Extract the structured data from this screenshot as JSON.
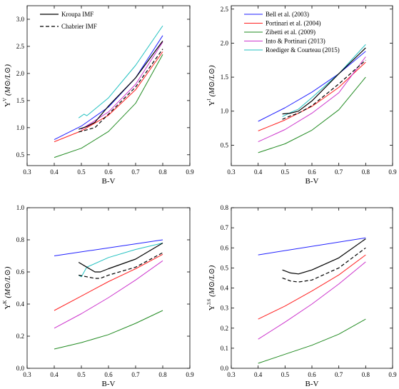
{
  "chart_data": [
    {
      "type": "line",
      "title": "",
      "xlabel": "B-V",
      "ylabel": "Υ^V (M⊙/L⊙)",
      "ylabel_parts": {
        "sym": "Υ",
        "sup": "V",
        "unit": "(M⊙/L⊙)"
      },
      "xlim": [
        0.3,
        0.9
      ],
      "ylim": [
        0.3,
        3.25
      ],
      "xticks": [
        "0.3",
        "0.4",
        "0.5",
        "0.6",
        "0.7",
        "0.8",
        "0.9"
      ],
      "yticks": [
        "0.5",
        "1.0",
        "1.5",
        "2.0",
        "2.5",
        "3.0"
      ],
      "legend": {
        "position": "top-left",
        "entries": [
          {
            "label": "Kroupa IMF",
            "style": "solid"
          },
          {
            "label": "Chabrier IMF",
            "style": "dashed"
          }
        ]
      },
      "series": [
        {
          "color": "#1f1fff",
          "style": "solid",
          "x": [
            0.4,
            0.5,
            0.6,
            0.7,
            0.8
          ],
          "y": [
            0.78,
            1.03,
            1.38,
            1.92,
            2.7
          ]
        },
        {
          "color": "#ff2020",
          "style": "solid",
          "x": [
            0.4,
            0.5,
            0.6,
            0.7,
            0.8
          ],
          "y": [
            0.74,
            0.94,
            1.23,
            1.7,
            2.4
          ]
        },
        {
          "color": "#228b22",
          "style": "solid",
          "x": [
            0.4,
            0.5,
            0.6,
            0.7,
            0.8
          ],
          "y": [
            0.45,
            0.62,
            0.93,
            1.45,
            2.35
          ]
        },
        {
          "color": "#cc33cc",
          "style": "solid",
          "x": [
            0.5,
            0.6,
            0.7,
            0.8
          ],
          "y": [
            0.97,
            1.29,
            1.8,
            2.58
          ]
        },
        {
          "color": "#20c0c0",
          "style": "solid",
          "x": [
            0.49,
            0.51,
            0.52,
            0.53,
            0.6,
            0.7,
            0.8
          ],
          "y": [
            1.18,
            1.25,
            1.22,
            1.26,
            1.55,
            2.15,
            2.88
          ]
        },
        {
          "color": "#000000",
          "style": "solid",
          "x": [
            0.49,
            0.52,
            0.55,
            0.6,
            0.7,
            0.8
          ],
          "y": [
            0.97,
            1.02,
            1.1,
            1.4,
            1.92,
            2.6
          ]
        },
        {
          "color": "#000000",
          "style": "dashed",
          "x": [
            0.49,
            0.52,
            0.55,
            0.6,
            0.7,
            0.8
          ],
          "y": [
            0.92,
            0.96,
            1.0,
            1.25,
            1.75,
            2.45
          ]
        }
      ]
    },
    {
      "type": "line",
      "title": "",
      "xlabel": "B-V",
      "ylabel": "Υ*^I (M⊙/L⊙)",
      "ylabel_parts": {
        "sym": "Υ",
        "sup": "I",
        "unit": "(M⊙/L⊙)"
      },
      "xlim": [
        0.3,
        0.9
      ],
      "ylim": [
        0.2,
        2.55
      ],
      "xticks": [
        "0.3",
        "0.4",
        "0.5",
        "0.6",
        "0.7",
        "0.8",
        "0.9"
      ],
      "yticks": [
        "0.5",
        "1.0",
        "1.5",
        "2.0",
        "2.5"
      ],
      "legend": {
        "position": "top-left",
        "entries": [
          {
            "label": "Bell et al. (2003)",
            "color": "#1f1fff"
          },
          {
            "label": "Portinari et al. (2004)",
            "color": "#ff2020"
          },
          {
            "label": "Zibetti et al. (2009)",
            "color": "#228b22"
          },
          {
            "label": "Into & Portinari (2013)",
            "color": "#cc33cc"
          },
          {
            "label": "Roediger & Courteau (2015)",
            "color": "#20c0c0"
          }
        ]
      },
      "series": [
        {
          "color": "#1f1fff",
          "style": "solid",
          "x": [
            0.4,
            0.5,
            0.6,
            0.7,
            0.8
          ],
          "y": [
            0.85,
            1.05,
            1.28,
            1.55,
            1.88
          ]
        },
        {
          "color": "#ff2020",
          "style": "solid",
          "x": [
            0.4,
            0.5,
            0.6,
            0.7,
            0.8
          ],
          "y": [
            0.71,
            0.87,
            1.07,
            1.35,
            1.72
          ]
        },
        {
          "color": "#228b22",
          "style": "solid",
          "x": [
            0.4,
            0.5,
            0.6,
            0.7,
            0.8
          ],
          "y": [
            0.39,
            0.52,
            0.72,
            1.02,
            1.5
          ]
        },
        {
          "color": "#cc33cc",
          "style": "solid",
          "x": [
            0.4,
            0.5,
            0.6,
            0.7,
            0.8
          ],
          "y": [
            0.55,
            0.73,
            0.97,
            1.27,
            1.8
          ]
        },
        {
          "color": "#20c0c0",
          "style": "solid",
          "x": [
            0.49,
            0.52,
            0.55,
            0.6,
            0.7,
            0.8
          ],
          "y": [
            0.92,
            0.98,
            1.03,
            1.2,
            1.55,
            1.98
          ]
        },
        {
          "color": "#000000",
          "style": "solid",
          "x": [
            0.49,
            0.52,
            0.55,
            0.6,
            0.7,
            0.8
          ],
          "y": [
            0.96,
            0.97,
            1.0,
            1.15,
            1.55,
            1.93
          ]
        },
        {
          "color": "#000000",
          "style": "dashed",
          "x": [
            0.49,
            0.52,
            0.55,
            0.6,
            0.7,
            0.8
          ],
          "y": [
            0.88,
            0.93,
            0.97,
            1.08,
            1.4,
            1.75
          ]
        }
      ]
    },
    {
      "type": "line",
      "title": "",
      "xlabel": "B-V",
      "ylabel": "Υ*^K (M⊙/L⊙)",
      "ylabel_parts": {
        "sym": "Υ",
        "sup": "K",
        "unit": "(M⊙/L⊙)"
      },
      "xlim": [
        0.3,
        0.9
      ],
      "ylim": [
        0.0,
        1.0
      ],
      "xticks": [
        "0.3",
        "0.4",
        "0.5",
        "0.6",
        "0.7",
        "0.8",
        "0.9"
      ],
      "yticks": [
        "0.0",
        "0.2",
        "0.4",
        "0.6",
        "0.8",
        "1.0"
      ],
      "series": [
        {
          "color": "#1f1fff",
          "style": "solid",
          "x": [
            0.4,
            0.8
          ],
          "y": [
            0.7,
            0.8
          ]
        },
        {
          "color": "#ff2020",
          "style": "solid",
          "x": [
            0.4,
            0.5,
            0.6,
            0.7,
            0.8
          ],
          "y": [
            0.36,
            0.45,
            0.54,
            0.62,
            0.71
          ]
        },
        {
          "color": "#228b22",
          "style": "solid",
          "x": [
            0.4,
            0.5,
            0.6,
            0.7,
            0.8
          ],
          "y": [
            0.12,
            0.16,
            0.21,
            0.28,
            0.36
          ]
        },
        {
          "color": "#cc33cc",
          "style": "solid",
          "x": [
            0.4,
            0.5,
            0.6,
            0.7,
            0.8
          ],
          "y": [
            0.25,
            0.34,
            0.44,
            0.55,
            0.67
          ]
        },
        {
          "color": "#20c0c0",
          "style": "solid",
          "x": [
            0.49,
            0.5,
            0.51,
            0.52,
            0.6,
            0.7,
            0.8
          ],
          "y": [
            0.58,
            0.57,
            0.6,
            0.63,
            0.69,
            0.74,
            0.78
          ]
        },
        {
          "color": "#000000",
          "style": "solid",
          "x": [
            0.49,
            0.52,
            0.55,
            0.57,
            0.6,
            0.7,
            0.8
          ],
          "y": [
            0.66,
            0.63,
            0.6,
            0.6,
            0.62,
            0.68,
            0.78
          ]
        },
        {
          "color": "#000000",
          "style": "dashed",
          "x": [
            0.49,
            0.52,
            0.55,
            0.57,
            0.6,
            0.7,
            0.8
          ],
          "y": [
            0.58,
            0.57,
            0.56,
            0.56,
            0.58,
            0.63,
            0.72
          ]
        }
      ]
    },
    {
      "type": "line",
      "title": "",
      "xlabel": "B-V",
      "ylabel": "Υ*^3.6 (M⊙/L⊙)",
      "ylabel_parts": {
        "sym": "Υ",
        "sup": "3.6",
        "unit": "(M⊙/L⊙)"
      },
      "xlim": [
        0.3,
        0.9
      ],
      "ylim": [
        0.0,
        0.8
      ],
      "xticks": [
        "0.3",
        "0.4",
        "0.5",
        "0.6",
        "0.7",
        "0.8",
        "0.9"
      ],
      "yticks": [
        "0.0",
        "0.1",
        "0.2",
        "0.3",
        "0.4",
        "0.5",
        "0.6",
        "0.7",
        "0.8"
      ],
      "series": [
        {
          "color": "#1f1fff",
          "style": "solid",
          "x": [
            0.4,
            0.8
          ],
          "y": [
            0.565,
            0.65
          ]
        },
        {
          "color": "#ff2020",
          "style": "solid",
          "x": [
            0.4,
            0.5,
            0.6,
            0.7,
            0.8
          ],
          "y": [
            0.245,
            0.31,
            0.385,
            0.465,
            0.565
          ]
        },
        {
          "color": "#228b22",
          "style": "solid",
          "x": [
            0.4,
            0.5,
            0.6,
            0.7,
            0.8
          ],
          "y": [
            0.025,
            0.07,
            0.115,
            0.17,
            0.245
          ]
        },
        {
          "color": "#cc33cc",
          "style": "solid",
          "x": [
            0.4,
            0.5,
            0.6,
            0.7,
            0.8
          ],
          "y": [
            0.145,
            0.23,
            0.32,
            0.42,
            0.53
          ]
        },
        {
          "color": "#000000",
          "style": "solid",
          "x": [
            0.49,
            0.52,
            0.55,
            0.6,
            0.7,
            0.8
          ],
          "y": [
            0.49,
            0.475,
            0.47,
            0.49,
            0.55,
            0.645
          ]
        },
        {
          "color": "#000000",
          "style": "dashed",
          "x": [
            0.49,
            0.52,
            0.55,
            0.6,
            0.7,
            0.8
          ],
          "y": [
            0.45,
            0.435,
            0.43,
            0.44,
            0.5,
            0.6
          ]
        }
      ]
    }
  ]
}
